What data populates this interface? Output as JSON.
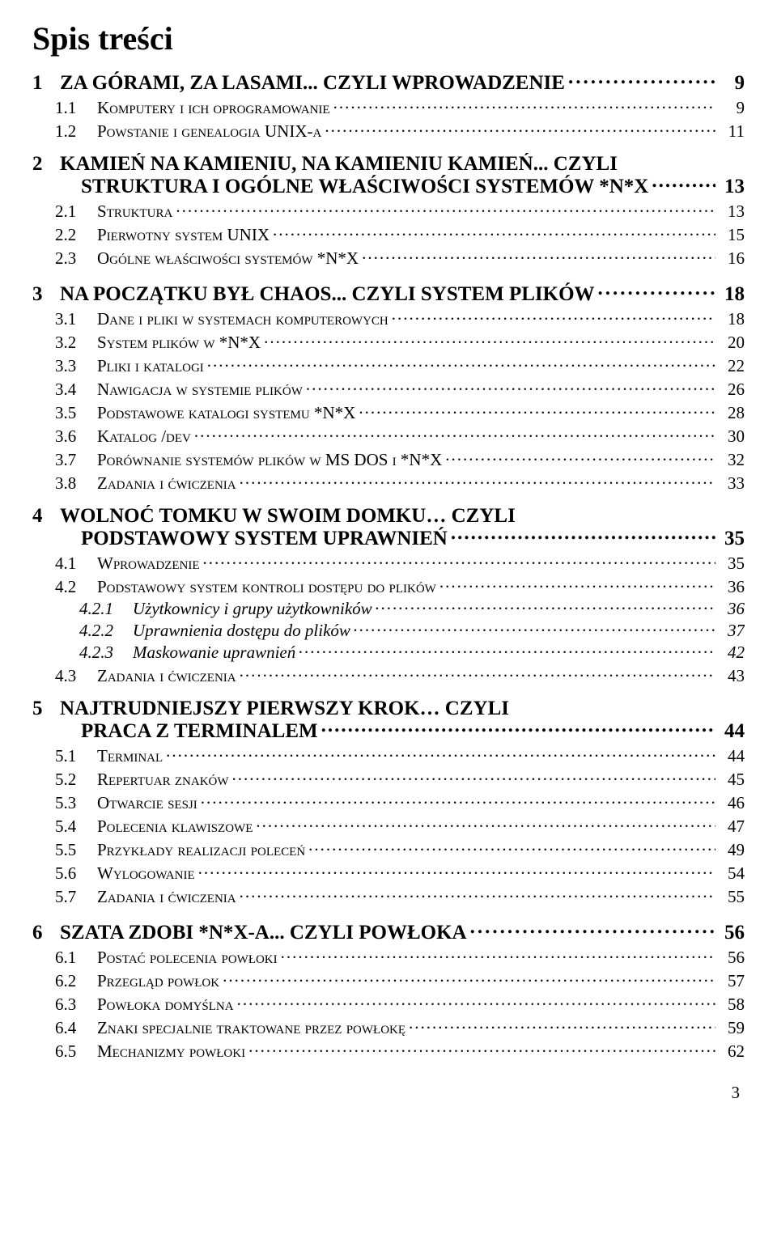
{
  "title": "Spis treści",
  "page_number": "3",
  "entries": [
    {
      "level": "chapter",
      "num": "1",
      "label": "ZA GÓRAMI, ZA LASAMI... CZYLI WPROWADZENIE",
      "page": "9"
    },
    {
      "level": "section",
      "num": "1.1",
      "label": "Komputery i ich oprogramowanie",
      "page": "9"
    },
    {
      "level": "section",
      "num": "1.2",
      "label": "Powstanie i genealogia UNIX-a",
      "page": "11"
    },
    {
      "level": "chapter",
      "num": "2",
      "label": "KAMIEŃ NA KAMIENIU, NA KAMIENIU KAMIEŃ... CZYLI",
      "nopage": true
    },
    {
      "level": "chapter-cont",
      "label": "STRUKTURA I OGÓLNE WŁAŚCIWOŚCI  SYSTEMÓW *N*X",
      "page": "13"
    },
    {
      "level": "section",
      "num": "2.1",
      "label": "Struktura",
      "page": "13"
    },
    {
      "level": "section",
      "num": "2.2",
      "label": "Pierwotny system UNIX",
      "page": "15"
    },
    {
      "level": "section",
      "num": "2.3",
      "label": "Ogólne właściwości systemów *N*X",
      "page": "16"
    },
    {
      "level": "chapter",
      "num": "3",
      "label": "NA POCZĄTKU BYŁ CHAOS... CZYLI  SYSTEM PLIKÓW",
      "page": "18"
    },
    {
      "level": "section",
      "num": "3.1",
      "label": "Dane i pliki w systemach komputerowych",
      "page": "18"
    },
    {
      "level": "section",
      "num": "3.2",
      "label": "System plików w *N*X",
      "page": "20"
    },
    {
      "level": "section",
      "num": "3.3",
      "label": "Pliki i katalogi",
      "page": "22"
    },
    {
      "level": "section",
      "num": "3.4",
      "label": "Nawigacja w systemie plików",
      "page": "26"
    },
    {
      "level": "section",
      "num": "3.5",
      "label": "Podstawowe katalogi systemu *N*X",
      "page": "28"
    },
    {
      "level": "section",
      "num": "3.6",
      "label": "Katalog  /dev",
      "page": "30"
    },
    {
      "level": "section",
      "num": "3.7",
      "label": "Porównanie systemów plików w MS DOS i *N*X",
      "page": "32"
    },
    {
      "level": "section",
      "num": "3.8",
      "label": "Zadania i ćwiczenia",
      "page": "33"
    },
    {
      "level": "chapter",
      "num": "4",
      "label": "WOLNOĆ TOMKU W SWOIM DOMKU… CZYLI",
      "nopage": true
    },
    {
      "level": "chapter-cont",
      "label": "PODSTAWOWY SYSTEM UPRAWNIEŃ",
      "page": "35"
    },
    {
      "level": "section",
      "num": "4.1",
      "label": "Wprowadzenie",
      "page": "35"
    },
    {
      "level": "section",
      "num": "4.2",
      "label": "Podstawowy system kontroli dostępu do plików",
      "page": "36"
    },
    {
      "level": "sub",
      "num": "4.2.1",
      "label": "Użytkownicy i grupy użytkowników",
      "page": "36"
    },
    {
      "level": "sub",
      "num": "4.2.2",
      "label": "Uprawnienia dostępu do plików",
      "page": "37"
    },
    {
      "level": "sub",
      "num": "4.2.3",
      "label": "Maskowanie uprawnień",
      "page": "42"
    },
    {
      "level": "section",
      "num": "4.3",
      "label": "Zadania i ćwiczenia",
      "page": "43"
    },
    {
      "level": "chapter",
      "num": "5",
      "label": "NAJTRUDNIEJSZY PIERWSZY KROK… CZYLI",
      "nopage": true
    },
    {
      "level": "chapter-cont",
      "label": "PRACA Z TERMINALEM",
      "page": "44"
    },
    {
      "level": "section",
      "num": "5.1",
      "label": "Terminal",
      "page": "44"
    },
    {
      "level": "section",
      "num": "5.2",
      "label": "Repertuar znaków",
      "page": "45"
    },
    {
      "level": "section",
      "num": "5.3",
      "label": "Otwarcie sesji",
      "page": "46"
    },
    {
      "level": "section",
      "num": "5.4",
      "label": "Polecenia klawiszowe",
      "page": "47"
    },
    {
      "level": "section",
      "num": "5.5",
      "label": "Przykłady realizacji poleceń",
      "page": "49"
    },
    {
      "level": "section",
      "num": "5.6",
      "label": "Wylogowanie",
      "page": "54"
    },
    {
      "level": "section",
      "num": "5.7",
      "label": "Zadania i ćwiczenia",
      "page": "55"
    },
    {
      "level": "chapter",
      "num": "6",
      "label": "SZATA ZDOBI *N*X-A... CZYLI POWŁOKA",
      "page": "56"
    },
    {
      "level": "section",
      "num": "6.1",
      "label": "Postać polecenia powłoki",
      "page": "56"
    },
    {
      "level": "section",
      "num": "6.2",
      "label": "Przegląd powłok",
      "page": "57"
    },
    {
      "level": "section",
      "num": "6.3",
      "label": "Powłoka domyślna",
      "page": "58"
    },
    {
      "level": "section",
      "num": "6.4",
      "label": "Znaki specjalnie traktowane przez powłokę",
      "page": "59"
    },
    {
      "level": "section",
      "num": "6.5",
      "label": "Mechanizmy powłoki",
      "page": "62"
    }
  ]
}
